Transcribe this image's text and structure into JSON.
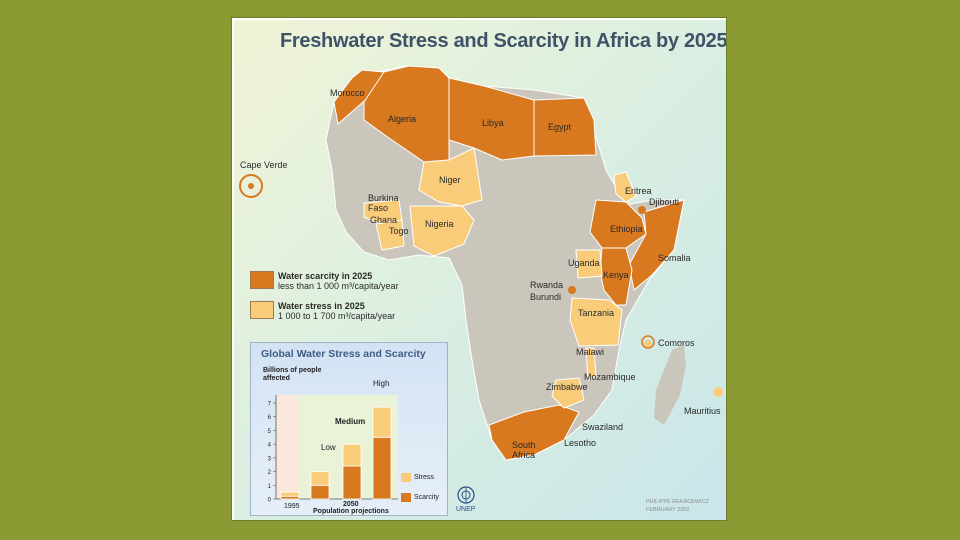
{
  "title": "Freshwater Stress and Scarcity in Africa by 2025",
  "colors": {
    "background": "#8a9a32",
    "scarcity": "#d8781f",
    "stress": "#f9cc7a",
    "other_land": "#cbc6bc",
    "sea": "#d9ede4"
  },
  "map_labels": {
    "morocco": "Morocco",
    "algeria": "Algeria",
    "libya": "Libya",
    "egypt": "Egypt",
    "cape_verde": "Cape Verde",
    "niger": "Niger",
    "burkina_faso": "Burkina\nFaso",
    "ghana": "Ghana",
    "togo": "Togo",
    "nigeria": "Nigeria",
    "eritrea": "Eritrea",
    "djibouti": "Djibouti",
    "ethiopia": "Ethiopia",
    "somalia": "Somalia",
    "uganda": "Uganda",
    "kenya": "Kenya",
    "rwanda": "Rwanda",
    "burundi": "Burundi",
    "tanzania": "Tanzania",
    "comoros": "Comoros",
    "malawi": "Malawi",
    "mozambique": "Mozambique",
    "zimbabwe": "Zimbabwe",
    "mauritius": "Mauritius",
    "swaziland": "Swaziland",
    "lesotho": "Lesotho",
    "south_africa": "South\nAfrica"
  },
  "legend": {
    "scarcity_title": "Water scarcity in 2025",
    "scarcity_desc": "less than 1 000 m³/capita/year",
    "stress_title": "Water stress in 2025",
    "stress_desc": "1 000 to 1 700 m³/capita/year"
  },
  "inset": {
    "title": "Global Water Stress and Scarcity",
    "ylabel": "Billions of people affected",
    "year_1995": "1995",
    "year_2050": "2050",
    "projections_label": "Population projections",
    "scenario_low": "Low",
    "scenario_medium": "Medium",
    "scenario_high": "High",
    "legend_stress": "Stress",
    "legend_scarcity": "Scarcity"
  },
  "chart_data": {
    "type": "bar",
    "title": "Global Water Stress and Scarcity",
    "ylabel": "Billions of people affected",
    "ylim": [
      0,
      7
    ],
    "yticks": [
      0,
      1,
      2,
      3,
      4,
      5,
      6,
      7
    ],
    "categories": [
      "1995",
      "Low",
      "Medium",
      "High"
    ],
    "series": [
      {
        "name": "Scarcity",
        "values": [
          0.2,
          1.0,
          2.4,
          4.5
        ]
      },
      {
        "name": "Stress",
        "values": [
          0.3,
          1.0,
          1.6,
          2.2
        ]
      }
    ]
  },
  "unep": "UNEP",
  "credit": "PHILIPPE REKACEWICZ\nFEBRUARY 2002"
}
